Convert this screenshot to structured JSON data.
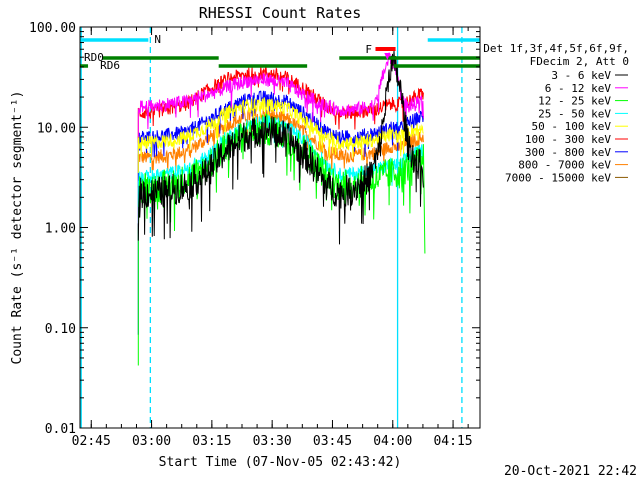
{
  "chart_data": {
    "type": "line",
    "title": "RHESSI Count Rates",
    "xlabel": "Start Time (07-Nov-05 02:43:42)",
    "ylabel": "Count Rate (s⁻¹ detector segment⁻¹)",
    "y_scale": "log",
    "xlim": [
      -1.5,
      98
    ],
    "ylim": [
      0.01,
      100
    ],
    "x_tick_labels": [
      "02:45",
      "03:00",
      "03:15",
      "03:30",
      "03:45",
      "04:00",
      "04:15"
    ],
    "x_tick_values": [
      1.3,
      16.3,
      31.3,
      46.3,
      61.3,
      76.3,
      91.3
    ],
    "y_tick_labels": [
      "0.01",
      "0.10",
      "1.00",
      "10.00",
      "100.00"
    ],
    "y_tick_values": [
      0.01,
      0.1,
      1,
      10,
      100
    ],
    "grid": false,
    "legend_placement": "right",
    "legend_header": [
      "Det 1f,3f,4f,5f,6f,9f,",
      "FDecim 2, Att 0"
    ],
    "series": [
      {
        "name": "3 - 6 keV",
        "color": "#000000",
        "x": [
          13,
          16,
          20,
          25,
          30,
          35,
          40,
          45,
          50,
          55,
          60,
          63,
          66,
          69,
          71,
          73,
          74,
          75,
          75.5,
          76.5,
          77.5,
          78.5,
          80,
          82,
          84
        ],
        "y": [
          2.2,
          2.2,
          2.3,
          2.6,
          3.5,
          6.0,
          8.5,
          9.5,
          8.0,
          5.0,
          2.6,
          2.2,
          2.4,
          2.8,
          3.5,
          6.0,
          12.0,
          25.0,
          40.0,
          42.0,
          33.0,
          20.0,
          7.0,
          4.5,
          4.0
        ]
      },
      {
        "name": "6 - 12 keV",
        "color": "#ff00ff",
        "x": [
          13,
          16,
          20,
          25,
          30,
          35,
          40,
          45,
          50,
          55,
          60,
          63,
          66,
          69,
          72,
          74,
          75.5,
          77,
          78.5,
          80,
          82,
          84
        ],
        "y": [
          16.0,
          16.0,
          17.0,
          18.0,
          21.0,
          25.0,
          29.0,
          30.0,
          27.0,
          20.0,
          16.0,
          15.0,
          15.0,
          15.5,
          17.0,
          35.0,
          50.0,
          40.0,
          20.0,
          16.0,
          17.0,
          18.0
        ]
      },
      {
        "name": "12 - 25 keV",
        "color": "#00ff00",
        "x": [
          13,
          16,
          20,
          25,
          30,
          35,
          40,
          45,
          50,
          55,
          60,
          63,
          66,
          69,
          72,
          74,
          76,
          78,
          80,
          82,
          84
        ],
        "y": [
          2.5,
          2.5,
          2.6,
          3.0,
          4.0,
          6.5,
          8.5,
          9.5,
          8.0,
          5.5,
          3.2,
          2.6,
          2.7,
          2.9,
          3.0,
          3.3,
          3.5,
          3.5,
          4.0,
          4.3,
          4.8
        ]
      },
      {
        "name": "25 - 50 keV",
        "color": "#00ffff",
        "x": [
          13,
          16,
          20,
          25,
          30,
          35,
          40,
          45,
          50,
          55,
          60,
          63,
          66,
          69,
          72,
          74,
          76,
          78,
          80,
          82,
          84
        ],
        "y": [
          3.2,
          3.2,
          3.4,
          3.8,
          5.0,
          8.0,
          10.5,
          11.5,
          10.0,
          7.0,
          4.2,
          3.4,
          3.4,
          3.6,
          3.8,
          4.0,
          4.2,
          4.2,
          5.0,
          5.5,
          6.0
        ]
      },
      {
        "name": "50 - 100 keV",
        "color": "#ffff00",
        "x": [
          13,
          16,
          20,
          25,
          30,
          35,
          40,
          45,
          50,
          55,
          60,
          63,
          66,
          69,
          72,
          74,
          76,
          78,
          80,
          82,
          84
        ],
        "y": [
          7.0,
          7.0,
          7.3,
          8.0,
          10.0,
          14.0,
          16.5,
          17.0,
          15.5,
          11.0,
          8.0,
          7.0,
          7.0,
          7.2,
          7.5,
          8.0,
          8.5,
          8.0,
          9.0,
          9.5,
          10.0
        ]
      },
      {
        "name": "100 - 300 keV",
        "color": "#ff0000",
        "x": [
          13,
          16,
          20,
          25,
          30,
          35,
          40,
          45,
          50,
          55,
          60,
          63,
          66,
          69,
          72,
          74,
          76,
          78,
          80,
          82,
          84
        ],
        "y": [
          14.0,
          14.0,
          15.0,
          17.0,
          23.0,
          30.0,
          34.0,
          35.0,
          31.0,
          23.0,
          16.0,
          14.0,
          14.0,
          14.5,
          15.0,
          16.0,
          17.0,
          17.0,
          18.0,
          20.0,
          22.0
        ]
      },
      {
        "name": "300 - 800 keV",
        "color": "#0000ff",
        "x": [
          13,
          16,
          20,
          25,
          30,
          35,
          40,
          45,
          50,
          55,
          60,
          63,
          66,
          69,
          72,
          74,
          76,
          78,
          80,
          82,
          84
        ],
        "y": [
          8.0,
          8.0,
          8.3,
          9.0,
          11.5,
          15.5,
          19.0,
          20.0,
          18.0,
          13.0,
          9.0,
          8.0,
          8.0,
          8.3,
          8.7,
          9.2,
          10.0,
          9.5,
          11.0,
          12.0,
          13.0
        ]
      },
      {
        "name": "800 - 7000 keV",
        "color": "#ff8000",
        "x": [
          13,
          16,
          20,
          25,
          30,
          35,
          40,
          45,
          50,
          55,
          60,
          63,
          66,
          69,
          72,
          74,
          76,
          78,
          80,
          82,
          84
        ],
        "y": [
          5.0,
          5.0,
          5.2,
          5.8,
          7.5,
          10.5,
          13.0,
          13.5,
          12.0,
          8.5,
          5.8,
          5.2,
          5.2,
          5.4,
          5.6,
          6.0,
          6.5,
          6.2,
          7.0,
          7.5,
          8.0
        ]
      },
      {
        "name": "7000 - 15000 keV",
        "color": "#8b5a00",
        "x": [],
        "y": []
      }
    ],
    "state_bars": [
      {
        "label": "N",
        "color": "#00e0ff",
        "x0": -1.5,
        "x1": 15.5,
        "level": 1,
        "label_x": 17
      },
      {
        "label": "",
        "color": "#00e0ff",
        "x0": 85,
        "x1": 98,
        "level": 1,
        "label_x": null
      },
      {
        "label": "RD0",
        "color": "#008000",
        "x0": 4,
        "x1": 33,
        "level": 2,
        "label_x": -0.5
      },
      {
        "label": "",
        "color": "#008000",
        "x0": 63,
        "x1": 98,
        "level": 2,
        "label_x": null
      },
      {
        "label": "RD6",
        "color": "#008000",
        "x0": -1.5,
        "x1": 0.5,
        "level": 3,
        "label_x": 3.5
      },
      {
        "label": "",
        "color": "#008000",
        "x0": 33,
        "x1": 55,
        "level": 3,
        "label_x": null
      },
      {
        "label": "",
        "color": "#008000",
        "x0": 76.5,
        "x1": 98,
        "level": 3,
        "label_x": null
      },
      {
        "label": "F",
        "color": "#ff0000",
        "x0": 72,
        "x1": 77,
        "level": 0,
        "label_x": 69.5
      }
    ],
    "vertical_lines": [
      {
        "x": -1.2,
        "style": "solid",
        "color": "#00e0ff"
      },
      {
        "x": 16,
        "style": "dashed",
        "color": "#00e0ff"
      },
      {
        "x": 77.5,
        "style": "solid",
        "color": "#00e0ff"
      },
      {
        "x": 93.5,
        "style": "dashed",
        "color": "#00e0ff"
      }
    ],
    "footer_timestamp": "20-Oct-2021 22:42"
  }
}
